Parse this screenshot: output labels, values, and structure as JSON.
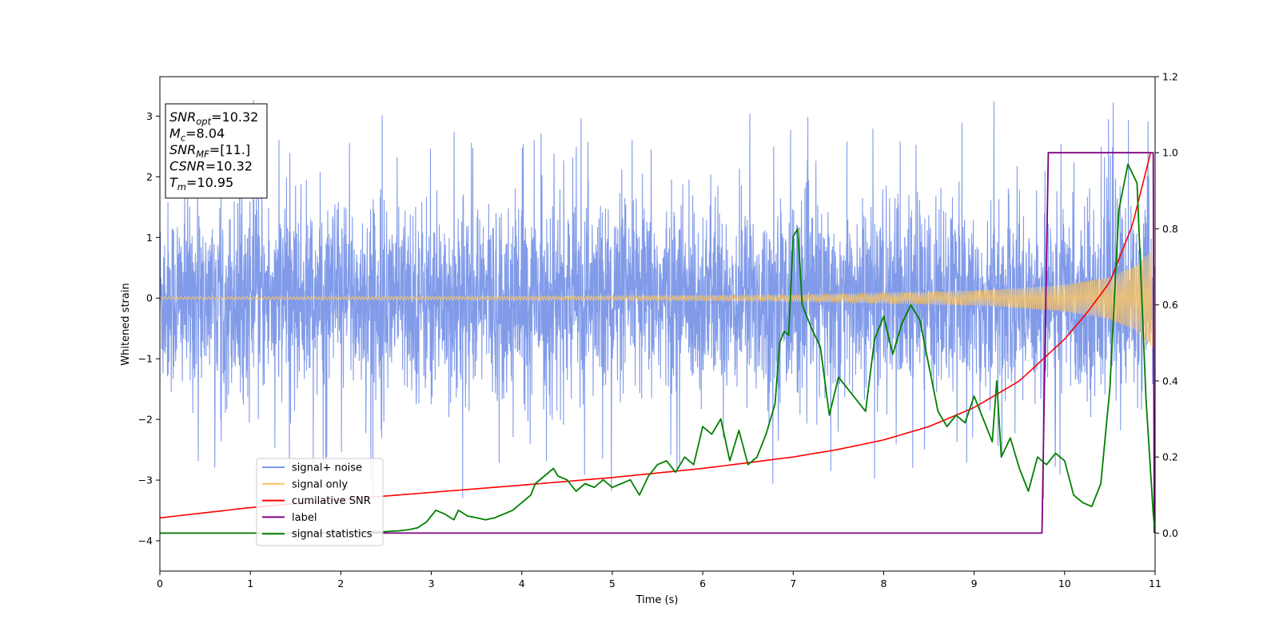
{
  "chart_data": {
    "type": "line",
    "xlabel": "Time (s)",
    "ylabel": "Whitened strain",
    "xlim": [
      0,
      11
    ],
    "ylim": [
      -4.5,
      3.65
    ],
    "y2lim": [
      -0.1,
      1.2
    ],
    "x_ticks": [
      "0",
      "1",
      "2",
      "3",
      "4",
      "5",
      "6",
      "7",
      "8",
      "9",
      "10",
      "11"
    ],
    "y_ticks": [
      "3",
      "2",
      "1",
      "0",
      "−1",
      "−2",
      "−3",
      "−4"
    ],
    "y2_ticks": [
      "0.0",
      "0.2",
      "0.4",
      "0.6",
      "0.8",
      "1.0",
      "1.2"
    ],
    "grid": false,
    "legend_position": "lower-left",
    "info_box": [
      {
        "base": "SNR",
        "sub": "opt",
        "value": "=10.32"
      },
      {
        "base": "M",
        "sub": "c",
        "value": "=8.04"
      },
      {
        "base": "SNR",
        "sub": "MF",
        "value": "=[11.]"
      },
      {
        "base": "CSNR",
        "sub": "",
        "value": "=10.32"
      },
      {
        "base": "T",
        "sub": "m",
        "value": "=10.95"
      }
    ],
    "series": [
      {
        "name": "signal+ noise",
        "axis": "left",
        "color": "#7a96e8",
        "description_values": {
          "approx_range": [
            -3.9,
            3.3
          ],
          "typical_band": [
            -1.8,
            1.8
          ]
        }
      },
      {
        "name": "signal only",
        "axis": "left",
        "color": "#f7c46a",
        "envelope": {
          "x": [
            0,
            2,
            4,
            6,
            7,
            8,
            9,
            9.5,
            10,
            10.5,
            10.8,
            10.95
          ],
          "amp": [
            0.02,
            0.025,
            0.03,
            0.04,
            0.05,
            0.08,
            0.12,
            0.16,
            0.22,
            0.35,
            0.55,
            0.8
          ]
        }
      },
      {
        "name": "cumilative SNR",
        "axis": "right",
        "color": "#ff0000",
        "x": [
          0,
          1,
          2,
          3,
          4,
          5,
          6,
          7,
          7.5,
          8,
          8.5,
          9,
          9.5,
          10,
          10.25,
          10.5,
          10.75,
          10.95
        ],
        "y": [
          0.04,
          0.067,
          0.088,
          0.107,
          0.126,
          0.146,
          0.17,
          0.2,
          0.22,
          0.245,
          0.28,
          0.33,
          0.4,
          0.51,
          0.58,
          0.66,
          0.81,
          1.0
        ]
      },
      {
        "name": "label",
        "axis": "right",
        "color": "#800080",
        "x": [
          0,
          9.75,
          9.82,
          10.98,
          10.99
        ],
        "y": [
          0,
          0,
          1,
          1,
          0
        ]
      },
      {
        "name": "signal statistics",
        "axis": "right",
        "color": "#008000",
        "x": [
          0,
          0.25,
          0.5,
          0.75,
          1,
          1.25,
          1.5,
          1.75,
          2,
          2.25,
          2.5,
          2.65,
          2.75,
          2.85,
          2.95,
          3.05,
          3.15,
          3.25,
          3.3,
          3.4,
          3.5,
          3.6,
          3.7,
          3.8,
          3.9,
          4.0,
          4.1,
          4.15,
          4.25,
          4.35,
          4.4,
          4.5,
          4.6,
          4.7,
          4.8,
          4.9,
          5.0,
          5.1,
          5.2,
          5.3,
          5.4,
          5.5,
          5.6,
          5.7,
          5.8,
          5.9,
          6.0,
          6.1,
          6.2,
          6.3,
          6.4,
          6.5,
          6.6,
          6.7,
          6.8,
          6.85,
          6.9,
          6.95,
          7.0,
          7.05,
          7.1,
          7.2,
          7.3,
          7.4,
          7.5,
          7.6,
          7.7,
          7.8,
          7.9,
          8.0,
          8.1,
          8.2,
          8.3,
          8.4,
          8.5,
          8.6,
          8.7,
          8.8,
          8.9,
          9.0,
          9.1,
          9.2,
          9.25,
          9.3,
          9.4,
          9.5,
          9.6,
          9.7,
          9.8,
          9.9,
          10.0,
          10.1,
          10.2,
          10.3,
          10.4,
          10.5,
          10.6,
          10.7,
          10.8,
          10.9,
          10.98,
          11.0
        ],
        "y": [
          0,
          0,
          0,
          0,
          0,
          0,
          0,
          0,
          0.002,
          0.003,
          0.004,
          0.006,
          0.009,
          0.014,
          0.03,
          0.06,
          0.05,
          0.035,
          0.06,
          0.045,
          0.04,
          0.035,
          0.04,
          0.05,
          0.06,
          0.08,
          0.1,
          0.13,
          0.15,
          0.17,
          0.15,
          0.14,
          0.11,
          0.13,
          0.12,
          0.14,
          0.12,
          0.13,
          0.14,
          0.1,
          0.15,
          0.18,
          0.19,
          0.16,
          0.2,
          0.18,
          0.28,
          0.26,
          0.3,
          0.19,
          0.27,
          0.18,
          0.2,
          0.26,
          0.34,
          0.5,
          0.53,
          0.52,
          0.78,
          0.8,
          0.6,
          0.54,
          0.49,
          0.31,
          0.41,
          0.38,
          0.35,
          0.32,
          0.51,
          0.57,
          0.47,
          0.55,
          0.6,
          0.56,
          0.44,
          0.32,
          0.28,
          0.31,
          0.29,
          0.36,
          0.3,
          0.24,
          0.4,
          0.2,
          0.25,
          0.17,
          0.11,
          0.2,
          0.18,
          0.21,
          0.19,
          0.1,
          0.08,
          0.07,
          0.13,
          0.38,
          0.85,
          0.97,
          0.92,
          0.35,
          0.05,
          0.0
        ]
      }
    ]
  }
}
